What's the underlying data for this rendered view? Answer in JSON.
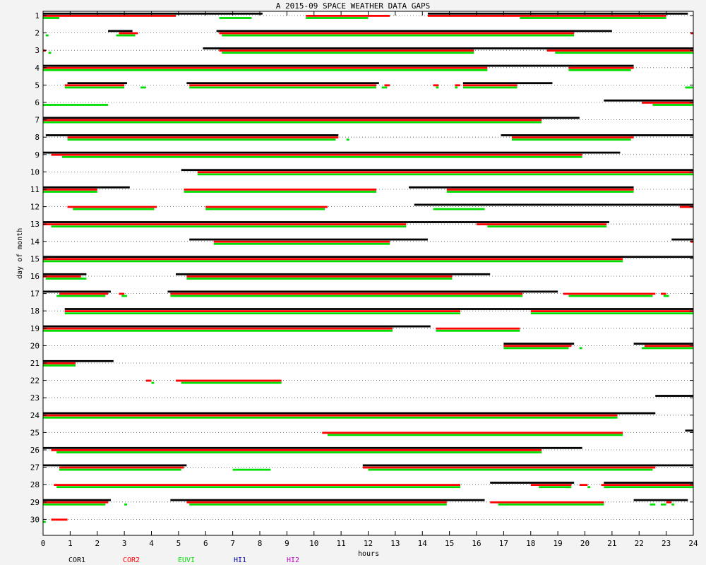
{
  "chart_data": {
    "type": "gantt",
    "title": "A  2015-09 SPACE WEATHER DATA GAPS",
    "xlabel": "hours",
    "ylabel": "day of month",
    "xlim": [
      0,
      24
    ],
    "ylim": [
      1,
      30
    ],
    "x_ticks": [
      0,
      1,
      2,
      3,
      4,
      5,
      6,
      7,
      8,
      9,
      10,
      11,
      12,
      13,
      14,
      15,
      16,
      17,
      18,
      19,
      20,
      21,
      22,
      23,
      24
    ],
    "y_ticks": [
      1,
      2,
      3,
      4,
      5,
      6,
      7,
      8,
      9,
      10,
      11,
      12,
      13,
      14,
      15,
      16,
      17,
      18,
      19,
      20,
      21,
      22,
      23,
      24,
      25,
      26,
      27,
      28,
      29,
      30
    ],
    "grid": "dotted horizontal at each day",
    "legend_position": "bottom",
    "series": [
      {
        "name": "COR1",
        "color": "#000000",
        "offset": -1
      },
      {
        "name": "COR2",
        "color": "#ff0000",
        "offset": 0
      },
      {
        "name": "EUVI",
        "color": "#00dd00",
        "offset": 1
      },
      {
        "name": "HI1",
        "color": "#0000aa",
        "offset": 2
      },
      {
        "name": "HI2",
        "color": "#bb00bb",
        "offset": 3
      }
    ],
    "gaps": [
      {
        "day": 1,
        "COR1": [
          [
            0,
            8.1
          ],
          [
            14.2,
            23.8
          ]
        ],
        "COR2": [
          [
            0,
            4.9
          ],
          [
            9.7,
            12.8
          ],
          [
            14.2,
            23.0
          ]
        ],
        "EUVI": [
          [
            0,
            0.6
          ],
          [
            6.5,
            7.7
          ],
          [
            9.7,
            12.0
          ],
          [
            17.6,
            23.0
          ]
        ]
      },
      {
        "day": 2,
        "COR1": [
          [
            2.4,
            3.3
          ],
          [
            6.4,
            21.0
          ]
        ],
        "COR2": [
          [
            2.8,
            3.5
          ],
          [
            6.5,
            19.6
          ],
          [
            23.9,
            24
          ]
        ],
        "EUVI": [
          [
            0.1,
            0.2
          ],
          [
            2.7,
            3.4
          ],
          [
            6.6,
            19.6
          ]
        ]
      },
      {
        "day": 3,
        "COR1": [
          [
            5.9,
            24
          ]
        ],
        "COR2": [
          [
            0,
            0.1
          ],
          [
            6.5,
            15.9
          ],
          [
            18.6,
            24
          ]
        ],
        "EUVI": [
          [
            0.2,
            0.3
          ],
          [
            6.6,
            15.9
          ],
          [
            18.9,
            24
          ]
        ]
      },
      {
        "day": 4,
        "COR1": [
          [
            0,
            21.8
          ]
        ],
        "COR2": [
          [
            0,
            16.4
          ],
          [
            19.4,
            21.8
          ]
        ],
        "EUVI": [
          [
            0,
            16.4
          ],
          [
            19.4,
            21.7
          ]
        ]
      },
      {
        "day": 5,
        "COR1": [
          [
            0.9,
            3.1
          ],
          [
            5.3,
            12.4
          ],
          [
            15.5,
            18.8
          ]
        ],
        "COR2": [
          [
            0.8,
            3.0
          ],
          [
            5.4,
            12.3
          ],
          [
            12.6,
            12.8
          ],
          [
            14.4,
            14.6
          ],
          [
            15.2,
            15.4
          ],
          [
            15.5,
            17.5
          ]
        ],
        "EUVI": [
          [
            0.8,
            3.0
          ],
          [
            3.6,
            3.8
          ],
          [
            5.4,
            12.3
          ],
          [
            12.5,
            12.7
          ],
          [
            14.5,
            14.6
          ],
          [
            15.2,
            15.3
          ],
          [
            15.5,
            17.5
          ],
          [
            23.7,
            24
          ]
        ]
      },
      {
        "day": 6,
        "COR1": [
          [
            20.7,
            24
          ]
        ],
        "COR2": [
          [
            22.1,
            24
          ]
        ],
        "EUVI": [
          [
            0,
            2.4
          ],
          [
            22.5,
            24
          ]
        ]
      },
      {
        "day": 7,
        "COR1": [
          [
            0,
            19.8
          ]
        ],
        "COR2": [
          [
            0,
            18.4
          ]
        ],
        "EUVI": [
          [
            0,
            18.4
          ]
        ]
      },
      {
        "day": 8,
        "COR1": [
          [
            0.1,
            10.9
          ],
          [
            16.9,
            24
          ]
        ],
        "COR2": [
          [
            0.9,
            10.9
          ],
          [
            17.3,
            21.8
          ]
        ],
        "EUVI": [
          [
            0.9,
            10.8
          ],
          [
            11.2,
            11.3
          ],
          [
            17.3,
            21.7
          ]
        ]
      },
      {
        "day": 9,
        "COR1": [
          [
            0,
            21.3
          ]
        ],
        "COR2": [
          [
            0.3,
            19.9
          ]
        ],
        "EUVI": [
          [
            0.7,
            19.9
          ]
        ]
      },
      {
        "day": 10,
        "COR1": [
          [
            5.1,
            24
          ]
        ],
        "COR2": [
          [
            5.7,
            24
          ]
        ],
        "EUVI": [
          [
            5.7,
            24
          ]
        ]
      },
      {
        "day": 11,
        "COR1": [
          [
            0,
            3.2
          ],
          [
            13.5,
            21.8
          ]
        ],
        "COR2": [
          [
            0,
            2.0
          ],
          [
            5.2,
            12.3
          ],
          [
            14.9,
            21.8
          ]
        ],
        "EUVI": [
          [
            0,
            2.0
          ],
          [
            5.2,
            12.3
          ],
          [
            14.9,
            21.8
          ]
        ]
      },
      {
        "day": 12,
        "COR1": [
          [
            13.7,
            24
          ]
        ],
        "COR2": [
          [
            0.9,
            4.2
          ],
          [
            6.0,
            10.5
          ],
          [
            23.5,
            24
          ]
        ],
        "EUVI": [
          [
            1.1,
            4.1
          ],
          [
            6.0,
            10.4
          ],
          [
            14.4,
            16.3
          ]
        ]
      },
      {
        "day": 13,
        "COR1": [
          [
            0,
            20.9
          ]
        ],
        "COR2": [
          [
            0,
            13.4
          ],
          [
            16.0,
            20.8
          ]
        ],
        "EUVI": [
          [
            0.3,
            13.4
          ],
          [
            16.4,
            20.8
          ]
        ]
      },
      {
        "day": 14,
        "COR1": [
          [
            5.4,
            14.2
          ],
          [
            23.2,
            24
          ]
        ],
        "COR2": [
          [
            6.3,
            12.8
          ],
          [
            23.9,
            24
          ]
        ],
        "EUVI": [
          [
            6.3,
            12.8
          ]
        ]
      },
      {
        "day": 15,
        "COR1": [
          [
            0,
            24
          ]
        ],
        "COR2": [
          [
            0,
            21.4
          ]
        ],
        "EUVI": [
          [
            0,
            21.4
          ]
        ]
      },
      {
        "day": 16,
        "COR1": [
          [
            0,
            1.6
          ],
          [
            4.9,
            16.5
          ]
        ],
        "COR2": [
          [
            0,
            1.4
          ],
          [
            5.3,
            15.1
          ]
        ],
        "EUVI": [
          [
            0.1,
            1.6
          ],
          [
            5.3,
            15.1
          ]
        ]
      },
      {
        "day": 17,
        "COR1": [
          [
            0,
            2.5
          ],
          [
            4.6,
            19.0
          ]
        ],
        "COR2": [
          [
            0.6,
            2.4
          ],
          [
            2.8,
            3.0
          ],
          [
            4.7,
            17.7
          ],
          [
            19.2,
            22.6
          ],
          [
            22.8,
            23.0
          ]
        ],
        "EUVI": [
          [
            0.5,
            2.3
          ],
          [
            2.9,
            3.1
          ],
          [
            4.7,
            17.7
          ],
          [
            19.4,
            22.5
          ],
          [
            22.9,
            23.1
          ]
        ]
      },
      {
        "day": 18,
        "COR1": [
          [
            0.8,
            24
          ]
        ],
        "COR2": [
          [
            0.8,
            15.4
          ],
          [
            18.0,
            24
          ]
        ],
        "EUVI": [
          [
            0.8,
            15.4
          ],
          [
            18.0,
            24
          ]
        ]
      },
      {
        "day": 19,
        "COR1": [
          [
            0,
            14.3
          ]
        ],
        "COR2": [
          [
            0,
            12.9
          ],
          [
            14.5,
            17.6
          ]
        ],
        "EUVI": [
          [
            0,
            12.9
          ],
          [
            14.5,
            17.6
          ]
        ]
      },
      {
        "day": 20,
        "COR1": [
          [
            17.0,
            19.6
          ],
          [
            21.8,
            24
          ]
        ],
        "COR2": [
          [
            17.0,
            19.5
          ],
          [
            22.2,
            24
          ]
        ],
        "EUVI": [
          [
            17.0,
            19.4
          ],
          [
            19.8,
            19.9
          ],
          [
            22.1,
            24
          ]
        ]
      },
      {
        "day": 21,
        "COR1": [
          [
            0,
            2.6
          ]
        ],
        "COR2": [
          [
            0,
            1.2
          ]
        ],
        "EUVI": [
          [
            0,
            1.2
          ]
        ]
      },
      {
        "day": 22,
        "COR2": [
          [
            3.8,
            4.0
          ],
          [
            4.9,
            8.8
          ]
        ],
        "EUVI": [
          [
            4.0,
            4.1
          ],
          [
            5.1,
            8.8
          ]
        ]
      },
      {
        "day": 23,
        "COR1": [
          [
            22.6,
            24
          ]
        ]
      },
      {
        "day": 24,
        "COR1": [
          [
            0,
            22.6
          ]
        ],
        "COR2": [
          [
            0,
            21.2
          ]
        ],
        "EUVI": [
          [
            0,
            21.2
          ]
        ]
      },
      {
        "day": 25,
        "COR1": [
          [
            23.7,
            24
          ]
        ],
        "COR2": [
          [
            10.3,
            21.4
          ]
        ],
        "EUVI": [
          [
            10.5,
            21.4
          ]
        ]
      },
      {
        "day": 26,
        "COR1": [
          [
            0,
            19.9
          ]
        ],
        "COR2": [
          [
            0.3,
            18.4
          ]
        ],
        "EUVI": [
          [
            0.5,
            18.4
          ]
        ]
      },
      {
        "day": 27,
        "COR1": [
          [
            0,
            5.3
          ],
          [
            11.8,
            24
          ]
        ],
        "COR2": [
          [
            0.6,
            5.2
          ],
          [
            11.8,
            22.6
          ]
        ],
        "EUVI": [
          [
            0.6,
            5.1
          ],
          [
            7.0,
            8.4
          ],
          [
            12.0,
            22.5
          ]
        ]
      },
      {
        "day": 28,
        "COR1": [
          [
            16.5,
            19.6
          ],
          [
            20.7,
            24
          ]
        ],
        "COR2": [
          [
            0.4,
            15.4
          ],
          [
            18.0,
            19.5
          ],
          [
            19.8,
            20.1
          ],
          [
            20.6,
            24
          ]
        ],
        "EUVI": [
          [
            0.5,
            15.4
          ],
          [
            18.3,
            19.5
          ],
          [
            20.1,
            20.2
          ],
          [
            20.7,
            24
          ]
        ]
      },
      {
        "day": 29,
        "COR1": [
          [
            0,
            2.5
          ],
          [
            4.7,
            16.3
          ],
          [
            21.8,
            23.8
          ]
        ],
        "COR2": [
          [
            0,
            2.4
          ],
          [
            5.3,
            14.9
          ],
          [
            16.5,
            20.7
          ],
          [
            23.0,
            23.2
          ]
        ],
        "EUVI": [
          [
            0,
            2.3
          ],
          [
            3.0,
            3.1
          ],
          [
            5.4,
            14.9
          ],
          [
            16.8,
            20.7
          ],
          [
            22.4,
            22.6
          ],
          [
            22.8,
            23.0
          ],
          [
            23.2,
            23.3
          ]
        ]
      },
      {
        "day": 30,
        "COR2": [
          [
            0.3,
            0.9
          ]
        ],
        "EUVI": [
          [
            0,
            0.1
          ]
        ]
      }
    ]
  }
}
